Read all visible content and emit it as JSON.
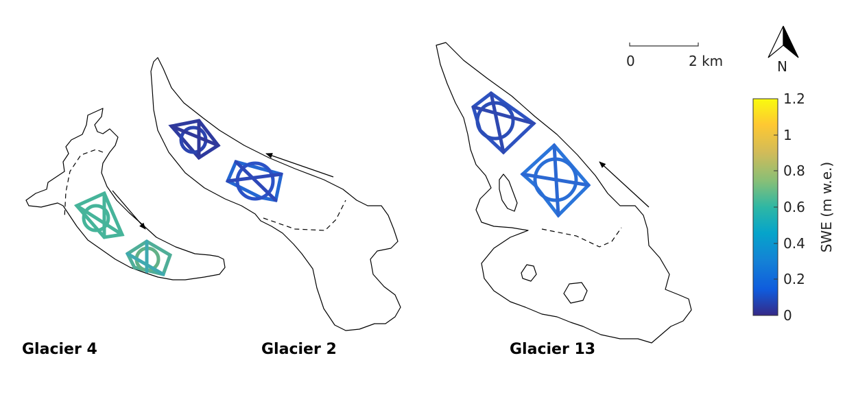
{
  "glaciers": [
    {
      "label": "Glacier 4",
      "swe_color": "#46b49a"
    },
    {
      "label": "Glacier 2",
      "swe_color": "#2a52c8"
    },
    {
      "label": "Glacier 13",
      "swe_color": "#2b6fd6"
    }
  ],
  "scale_bar": {
    "start_label": "0",
    "end_label": "2 km"
  },
  "north_arrow": {
    "label": "N"
  },
  "colorbar": {
    "title": "SWE (m w.e.)",
    "ticks": [
      "1.2",
      "1",
      "0.8",
      "0.6",
      "0.4",
      "0.2",
      "0"
    ],
    "range": [
      0,
      1.2
    ],
    "colormap": [
      "#352a87",
      "#0f5cdd",
      "#1481d6",
      "#06a4ca",
      "#2eb7a4",
      "#87bf77",
      "#d1bb59",
      "#fec832",
      "#f9fb0e"
    ]
  }
}
